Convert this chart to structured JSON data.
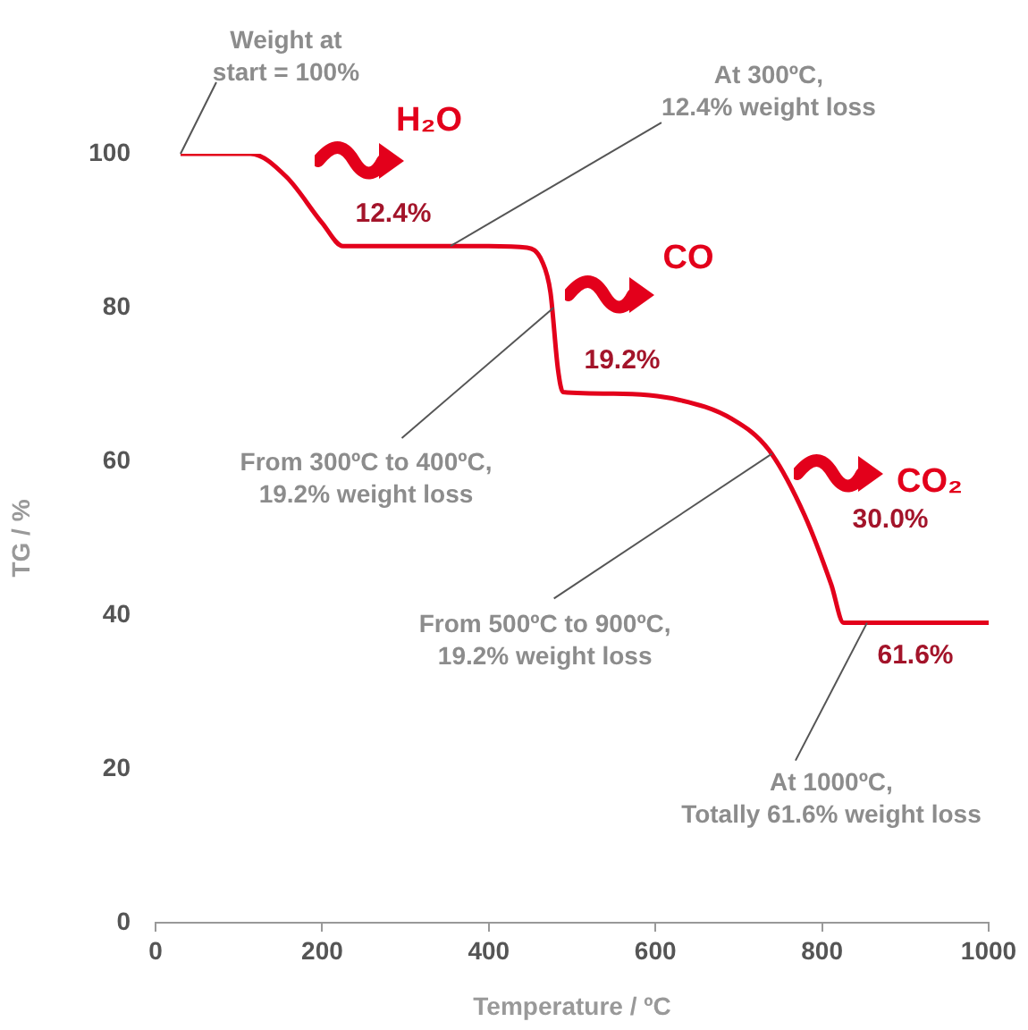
{
  "chart_data": {
    "type": "line",
    "xlabel": "Temperature / ºC",
    "ylabel": "TG / %",
    "x": [
      30,
      114,
      157,
      200,
      225,
      300,
      400,
      446,
      464,
      474,
      483,
      489,
      550,
      628,
      692,
      736,
      779,
      811,
      826,
      900,
      1000
    ],
    "series": [
      {
        "color": "#e3001b",
        "values": [
          100,
          100,
          97,
          91,
          88,
          88,
          88,
          87.8,
          86,
          82,
          72,
          69,
          68.8,
          68,
          65.5,
          61.5,
          53,
          44,
          39,
          39,
          39
        ]
      }
    ],
    "xlim": [
      0,
      1000
    ],
    "xticks": [
      0,
      200,
      400,
      600,
      800,
      1000
    ],
    "ylim": [
      0,
      100
    ],
    "yticks": [
      0,
      20,
      40,
      60,
      80,
      100
    ],
    "grid": false,
    "legend": false,
    "marker": "none",
    "line_style": "solid",
    "annotations": [
      {
        "text": "Weight at\nstart = 100%",
        "x": 30,
        "y": 100
      },
      {
        "text": "At 300ºC,\n12.4% weight loss",
        "x": 354,
        "y": 88
      },
      {
        "text": "From 300ºC to 400ºC,\n19.2% weight loss",
        "x": 478,
        "y": 80
      },
      {
        "text": "From 500ºC to 900ºC,\n19.2% weight loss",
        "x": 740,
        "y": 61
      },
      {
        "text": "At 1000ºC,\nTotally 61.6% weight loss",
        "x": 854,
        "y": 39
      },
      "H₂O",
      "12.4%",
      "CO",
      "19.2%",
      "CO₂",
      "30.0%",
      "61.6%"
    ]
  }
}
